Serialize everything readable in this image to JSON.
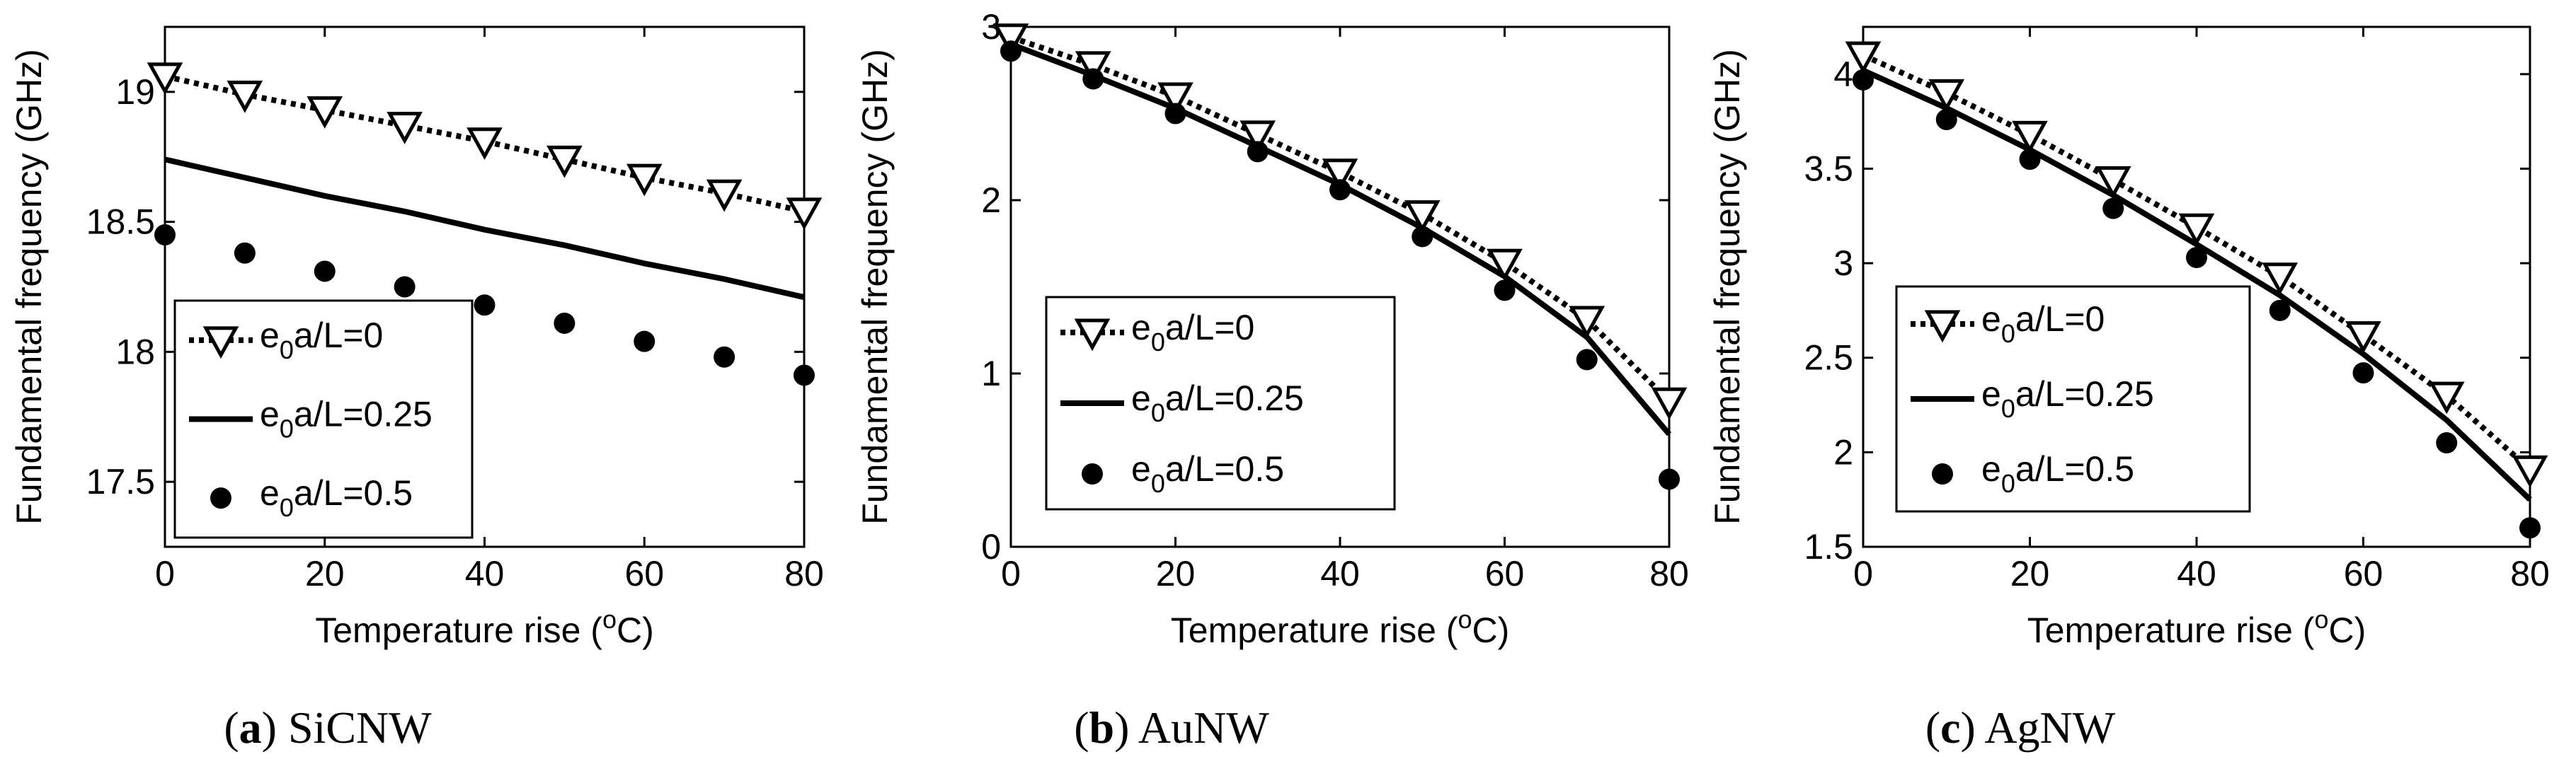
{
  "chart_data": [
    {
      "type": "line",
      "panel_label": "(a)",
      "caption": "SiCNW",
      "xlabel": "Temperature rise (",
      "xlabel_unit_sup": "o",
      "xlabel_unit_tail": "C)",
      "ylabel": "Fundamental frequency (GHz)",
      "xlim": [
        0,
        80
      ],
      "ylim": [
        17.25,
        19.25
      ],
      "xticks": [
        0,
        20,
        40,
        60,
        80
      ],
      "xtick_labels": [
        "0",
        "20",
        "40",
        "60",
        "80"
      ],
      "yticks": [
        17.5,
        18,
        18.5,
        19
      ],
      "ytick_labels": [
        "17.5",
        "18",
        "18.5",
        "19"
      ],
      "grid": false,
      "legend_position": "bottom-left",
      "x": [
        0,
        10,
        20,
        30,
        40,
        50,
        60,
        70,
        80
      ],
      "series": [
        {
          "name": "e0a/L=0",
          "label_pre": "e",
          "label_sub": "0",
          "label_post": "a/L=0",
          "style": "dotted-triangle",
          "values": [
            19.06,
            18.99,
            18.93,
            18.87,
            18.81,
            18.74,
            18.67,
            18.61,
            18.54
          ]
        },
        {
          "name": "e0a/L=0.25",
          "label_pre": "e",
          "label_sub": "0",
          "label_post": "a/L=0.25",
          "style": "solid",
          "values": [
            18.74,
            18.67,
            18.6,
            18.54,
            18.47,
            18.41,
            18.34,
            18.28,
            18.21
          ]
        },
        {
          "name": "e0a/L=0.5",
          "label_pre": "e",
          "label_sub": "0",
          "label_post": "a/L=0.5",
          "style": "dots",
          "values": [
            18.45,
            18.38,
            18.31,
            18.25,
            18.18,
            18.11,
            18.04,
            17.98,
            17.91
          ]
        }
      ]
    },
    {
      "type": "line",
      "panel_label": "(b)",
      "caption": "AuNW",
      "xlabel": "Temperature rise (",
      "xlabel_unit_sup": "o",
      "xlabel_unit_tail": "C)",
      "ylabel": "Fundamental frequency (GHz)",
      "xlim": [
        0,
        80
      ],
      "ylim": [
        0,
        3
      ],
      "xticks": [
        0,
        20,
        40,
        60,
        80
      ],
      "xtick_labels": [
        "0",
        "20",
        "40",
        "60",
        "80"
      ],
      "yticks": [
        0,
        1,
        2,
        3
      ],
      "ytick_labels": [
        "0",
        "1",
        "2",
        "3"
      ],
      "grid": false,
      "legend_position": "middle-left",
      "x": [
        0,
        10,
        20,
        30,
        40,
        50,
        60,
        70,
        80
      ],
      "series": [
        {
          "name": "e0a/L=0",
          "label_pre": "e",
          "label_sub": "0",
          "label_post": "a/L=0",
          "style": "dotted-triangle",
          "values": [
            2.94,
            2.78,
            2.6,
            2.38,
            2.16,
            1.92,
            1.64,
            1.31,
            0.84
          ]
        },
        {
          "name": "e0a/L=0.25",
          "label_pre": "e",
          "label_sub": "0",
          "label_post": "a/L=0.25",
          "style": "solid",
          "values": [
            2.9,
            2.72,
            2.53,
            2.31,
            2.09,
            1.84,
            1.56,
            1.21,
            0.65
          ]
        },
        {
          "name": "e0a/L=0.5",
          "label_pre": "e",
          "label_sub": "0",
          "label_post": "a/L=0.5",
          "style": "dots",
          "values": [
            2.86,
            2.7,
            2.5,
            2.28,
            2.06,
            1.79,
            1.48,
            1.08,
            0.39
          ]
        }
      ]
    },
    {
      "type": "line",
      "panel_label": "(c)",
      "caption": "AgNW",
      "xlabel": "Temperature rise (",
      "xlabel_unit_sup": "o",
      "xlabel_unit_tail": "C)",
      "ylabel": "Fundamental frequency (GHz)",
      "xlim": [
        0,
        80
      ],
      "ylim": [
        1.5,
        4.25
      ],
      "xticks": [
        0,
        20,
        40,
        60,
        80
      ],
      "xtick_labels": [
        "0",
        "20",
        "40",
        "60",
        "80"
      ],
      "yticks": [
        1.5,
        2,
        2.5,
        3,
        3.5,
        4
      ],
      "ytick_labels": [
        "1.5",
        "2",
        "2.5",
        "3",
        "3.5",
        "4"
      ],
      "grid": false,
      "legend_position": "middle-left",
      "x": [
        0,
        10,
        20,
        30,
        40,
        50,
        60,
        70,
        80
      ],
      "series": [
        {
          "name": "e0a/L=0",
          "label_pre": "e",
          "label_sub": "0",
          "label_post": "a/L=0",
          "style": "dotted-triangle",
          "values": [
            4.1,
            3.9,
            3.68,
            3.44,
            3.19,
            2.93,
            2.62,
            2.3,
            1.91
          ]
        },
        {
          "name": "e0a/L=0.25",
          "label_pre": "e",
          "label_sub": "0",
          "label_post": "a/L=0.25",
          "style": "solid",
          "values": [
            4.02,
            3.82,
            3.6,
            3.36,
            3.1,
            2.83,
            2.52,
            2.17,
            1.75
          ]
        },
        {
          "name": "e0a/L=0.5",
          "label_pre": "e",
          "label_sub": "0",
          "label_post": "a/L=0.5",
          "style": "dots",
          "values": [
            3.97,
            3.76,
            3.55,
            3.29,
            3.03,
            2.75,
            2.42,
            2.05,
            1.6
          ]
        }
      ]
    }
  ]
}
